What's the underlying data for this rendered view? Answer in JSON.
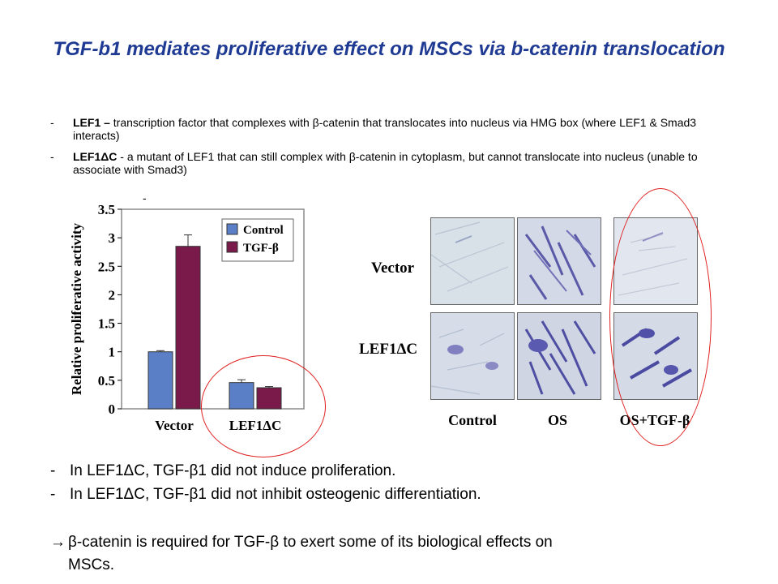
{
  "title": "TGF-b1 mediates proliferative effect on MSCs via b-catenin translocation",
  "bullets_top": [
    {
      "dash": "-",
      "bold": "LEF1 –",
      "text": " transcription factor that complexes  with β-catenin that translocates into nucleus via HMG box  (where LEF1 & Smad3 interacts)"
    },
    {
      "dash": "-",
      "bold": "LEF1ΔC",
      "text": " - a mutant of LEF1 that can still complex with β-catenin in cytoplasm, but cannot translocate into nucleus (unable to associate with Smad3)"
    }
  ],
  "stray_dash": "-",
  "chart_data": {
    "type": "bar",
    "categories": [
      "Vector",
      "LEF1ΔC"
    ],
    "series": [
      {
        "name": "Control",
        "values": [
          1.0,
          0.46
        ],
        "errors": [
          0.02,
          0.05
        ],
        "color": "#5b7fc7"
      },
      {
        "name": "TGF-β",
        "values": [
          2.85,
          0.37
        ],
        "errors": [
          0.2,
          0.02
        ],
        "color": "#7a1a4a"
      }
    ],
    "ylabel": "Relative proliferative activity",
    "ylim": [
      0,
      3.5
    ],
    "yticks": [
      "0",
      "0.5",
      "1",
      "1.5",
      "2",
      "2.5",
      "3",
      "3.5"
    ],
    "legend_position": "top-right"
  },
  "micrograph": {
    "rows": [
      "Vector",
      "LEF1ΔC"
    ],
    "columns": [
      "Control",
      "OS",
      "OS+TGF-β"
    ]
  },
  "bullets_bottom": [
    {
      "dash": "-",
      "text": "In LEF1ΔC, TGF-β1 did not induce proliferation."
    },
    {
      "dash": "-",
      "text": "In LEF1ΔC, TGF-β1 did not inhibit osteogenic differentiation."
    }
  ],
  "conclusion": {
    "arrow": "→",
    "line1": "β-catenin is required for TGF-β to exert some of its biological effects on",
    "line2": "MSCs."
  },
  "colors": {
    "title": "#1f3a93",
    "highlight": "#e02020"
  }
}
